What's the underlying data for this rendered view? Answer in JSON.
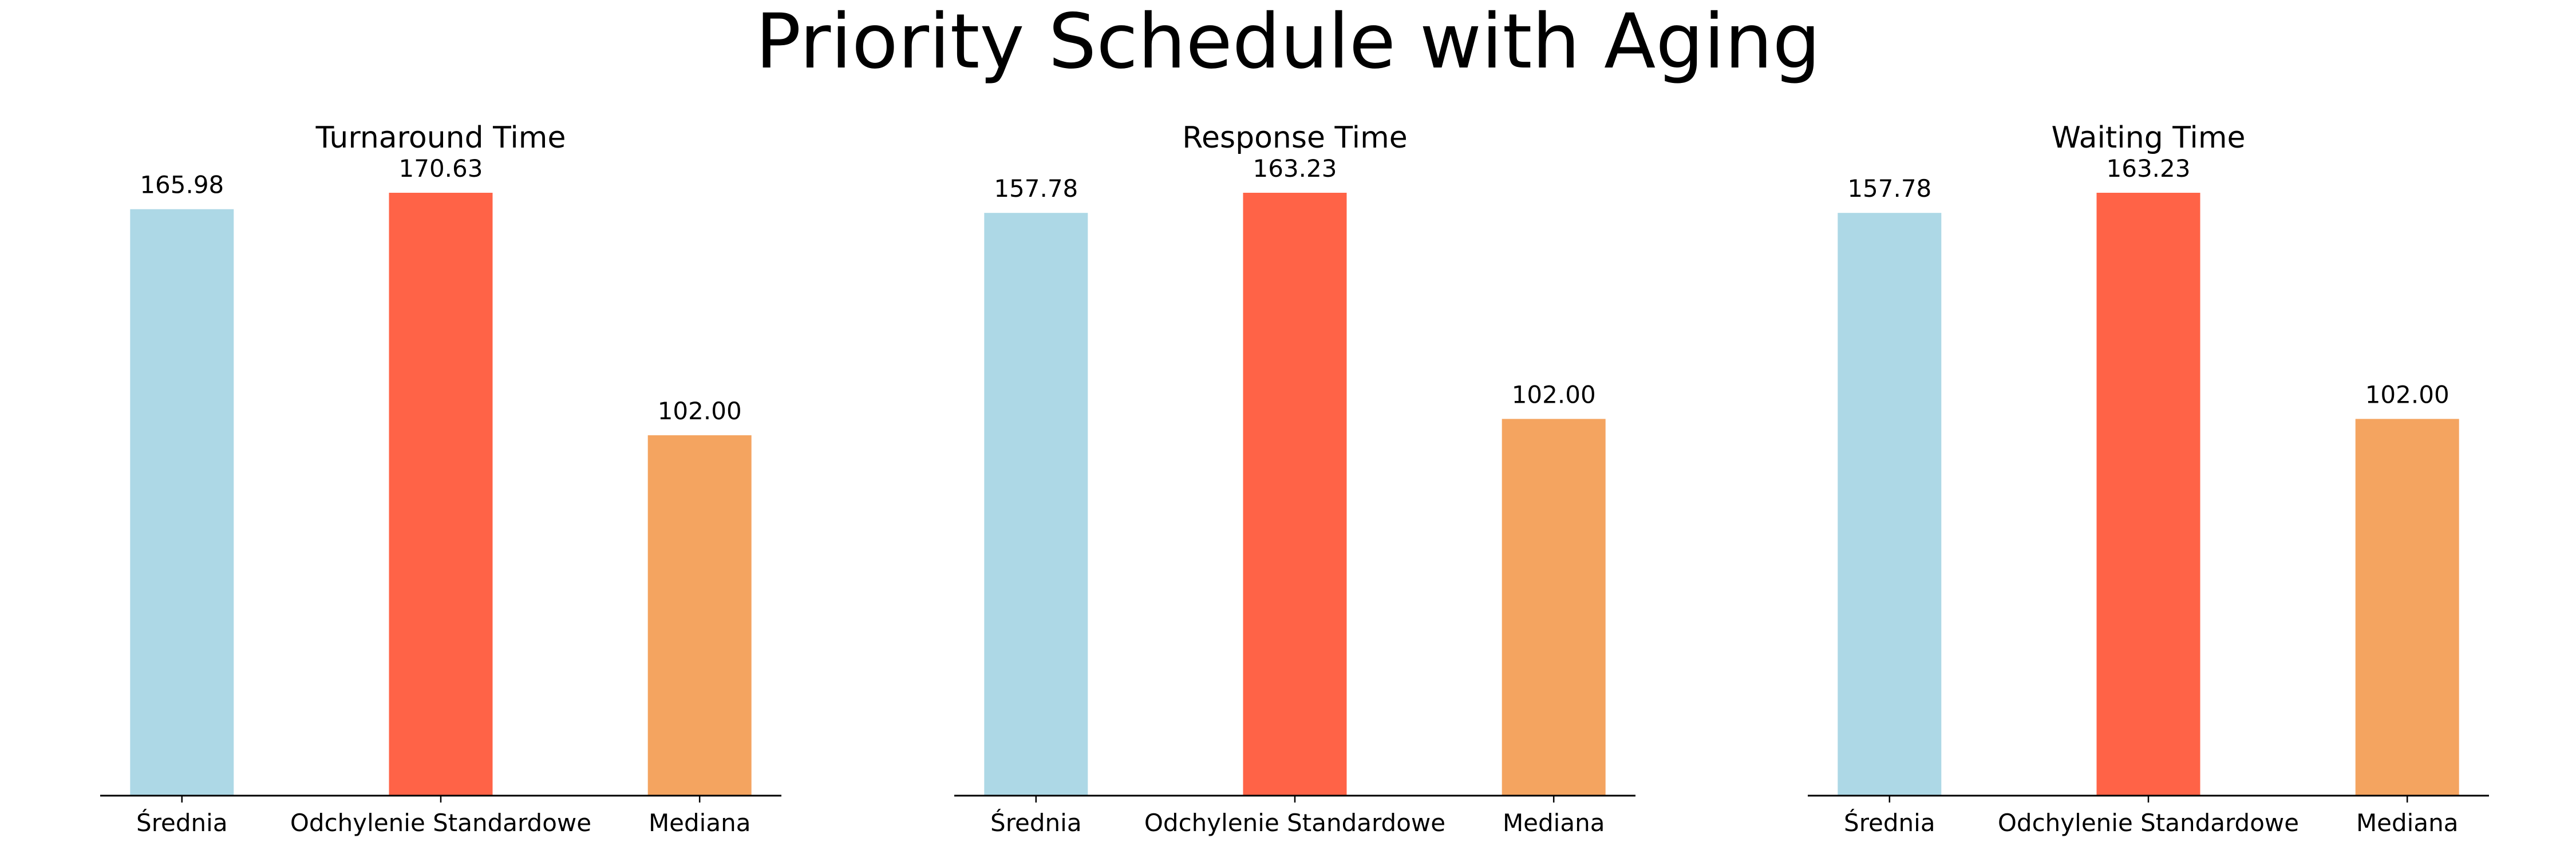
{
  "figure": {
    "title": "Priority Schedule with Aging"
  },
  "colors": {
    "series": [
      "#add8e6",
      "#ff6347",
      "#f4a460"
    ],
    "axis": "#000000",
    "text": "#000000"
  },
  "chart_data": [
    {
      "type": "bar",
      "title": "Turnaround Time",
      "categories": [
        "Średnia",
        "Odchylenie Standardowe",
        "Mediana"
      ],
      "values": [
        165.98,
        170.63,
        102.0
      ],
      "value_labels": [
        "165.98",
        "170.63",
        "102.00"
      ],
      "xlabel": "",
      "ylabel": "",
      "ylim": [
        0,
        170.63
      ],
      "grid": false,
      "legend": "none"
    },
    {
      "type": "bar",
      "title": "Response Time",
      "categories": [
        "Średnia",
        "Odchylenie Standardowe",
        "Mediana"
      ],
      "values": [
        157.78,
        163.23,
        102.0
      ],
      "value_labels": [
        "157.78",
        "163.23",
        "102.00"
      ],
      "xlabel": "",
      "ylabel": "",
      "ylim": [
        0,
        163.23
      ],
      "grid": false,
      "legend": "none"
    },
    {
      "type": "bar",
      "title": "Waiting Time",
      "categories": [
        "Średnia",
        "Odchylenie Standardowe",
        "Mediana"
      ],
      "values": [
        157.78,
        163.23,
        102.0
      ],
      "value_labels": [
        "157.78",
        "163.23",
        "102.00"
      ],
      "xlabel": "",
      "ylabel": "",
      "ylim": [
        0,
        163.23
      ],
      "grid": false,
      "legend": "none"
    }
  ]
}
